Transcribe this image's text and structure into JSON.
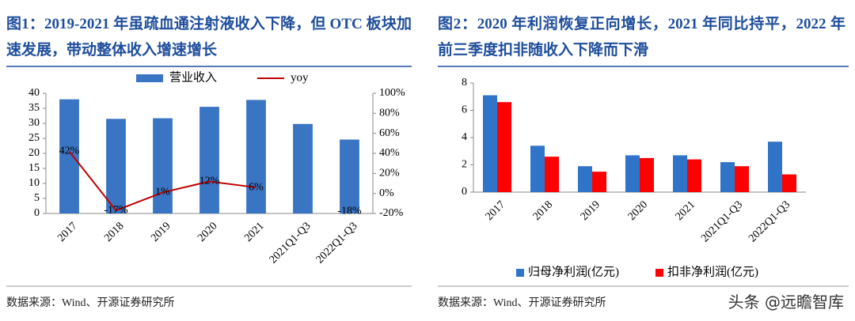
{
  "chart_data": [
    {
      "type": "combo",
      "title": "图1：2019-2021 年虽疏血通注射液收入下降，但 OTC 板块加速发展，带动整体收入增速增长",
      "source": "数据来源：Wind、开源证券研究所",
      "categories": [
        "2017",
        "2018",
        "2019",
        "2020",
        "2021",
        "2021Q1-Q3",
        "2022Q1-Q3"
      ],
      "series": [
        {
          "name": "营业收入",
          "type": "bar",
          "color": "#3a75c4",
          "values": [
            38,
            31.5,
            31.7,
            35.5,
            37.8,
            29.8,
            24.6
          ]
        },
        {
          "name": "yoy",
          "type": "line",
          "axis": "y2",
          "color": "#c00000",
          "values": [
            42,
            -17,
            1,
            12,
            6,
            null,
            -18
          ],
          "value_labels": [
            "42%",
            "-17%",
            "1%",
            "12%",
            "6%",
            null,
            "-18%"
          ]
        }
      ],
      "ylim": [
        0,
        40
      ],
      "yticks": [
        0,
        5,
        10,
        15,
        20,
        25,
        30,
        35,
        40
      ],
      "y2lim": [
        -20,
        100
      ],
      "y2ticks": [
        {
          "value": -20,
          "label": "-20%"
        },
        {
          "value": 0,
          "label": "0%"
        },
        {
          "value": 20,
          "label": "20%"
        },
        {
          "value": 40,
          "label": "40%"
        },
        {
          "value": 60,
          "label": "60%"
        },
        {
          "value": 80,
          "label": "80%"
        },
        {
          "value": 100,
          "label": "100%"
        }
      ],
      "grid": false,
      "legend": "top"
    },
    {
      "type": "bar",
      "title": "图2：2020 年利润恢复正向增长，2021 年同比持平，2022 年前三季度扣非随收入下降而下滑",
      "source": "数据来源：Wind、开源证券研究所",
      "categories": [
        "2017",
        "2018",
        "2019",
        "2020",
        "2021",
        "2021Q1-Q3",
        "2022Q1-Q3"
      ],
      "series": [
        {
          "name": "归母净利润(亿元)",
          "type": "bar",
          "color": "#2f74c8",
          "values": [
            7.1,
            3.4,
            1.9,
            2.7,
            2.7,
            2.2,
            3.7
          ]
        },
        {
          "name": "扣非净利润(亿元)",
          "type": "bar",
          "color": "#ff0000",
          "values": [
            6.6,
            2.6,
            1.5,
            2.5,
            2.4,
            1.9,
            1.3
          ]
        }
      ],
      "ylim": [
        0,
        8
      ],
      "yticks": [
        0,
        2,
        4,
        6,
        8
      ],
      "grid": false,
      "legend": "bottom"
    }
  ],
  "watermark": "头条 @远瞻智库"
}
